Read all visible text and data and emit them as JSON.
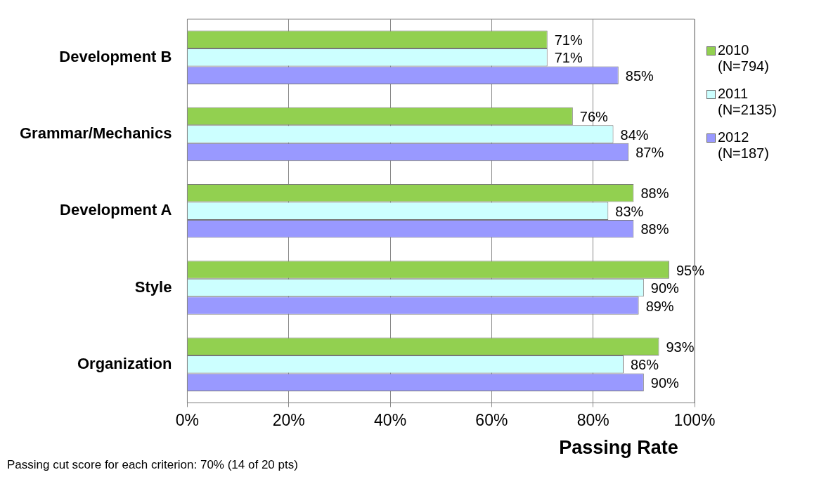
{
  "chart_data": {
    "type": "bar",
    "orientation": "horizontal",
    "xlabel": "Passing Rate",
    "categories": [
      "Development B",
      "Grammar/Mechanics",
      "Development A",
      "Style",
      "Organization"
    ],
    "series": [
      {
        "name": "2010 (N=794)",
        "color": "#92d050",
        "values": [
          71,
          76,
          88,
          95,
          93
        ],
        "value_labels": [
          "71%",
          "76%",
          "88%",
          "95%",
          "93%"
        ]
      },
      {
        "name": "2011 (N=2135)",
        "color": "#ccffff",
        "values": [
          71,
          84,
          83,
          90,
          86
        ],
        "value_labels": [
          "71%",
          "84%",
          "83%",
          "90%",
          "86%"
        ]
      },
      {
        "name": "2012 (N=187)",
        "color": "#9999ff",
        "values": [
          85,
          87,
          88,
          89,
          90
        ],
        "value_labels": [
          "85%",
          "87%",
          "88%",
          "89%",
          "90%"
        ]
      }
    ],
    "xlim": [
      0,
      100
    ],
    "xticks": [
      {
        "value": 0,
        "label": "0%"
      },
      {
        "value": 20,
        "label": "20%"
      },
      {
        "value": 40,
        "label": "40%"
      },
      {
        "value": 60,
        "label": "60%"
      },
      {
        "value": 80,
        "label": "80%"
      },
      {
        "value": 100,
        "label": "100%"
      }
    ],
    "grid": "x",
    "legend": "right",
    "annotations": [
      "Passing cut score for each criterion: 70% (14 of 20 pts)"
    ]
  }
}
